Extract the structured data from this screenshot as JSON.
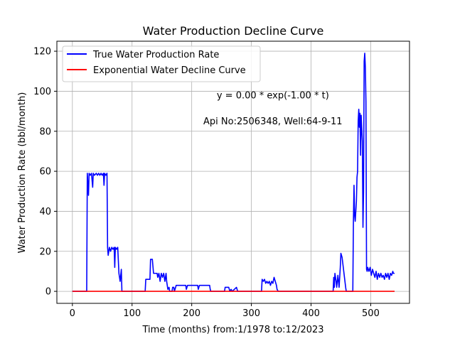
{
  "chart_data": {
    "type": "line",
    "title": "Water Production Decline Curve",
    "xlabel": "Time (months) from:1/1978 to:12/2023",
    "ylabel": "Water Production Rate (bbl/month)",
    "xlim": [
      -26,
      565
    ],
    "ylim": [
      -6,
      125
    ],
    "xticks": [
      0,
      100,
      200,
      300,
      400,
      500
    ],
    "yticks": [
      0,
      20,
      40,
      60,
      80,
      100,
      120
    ],
    "grid": true,
    "legend_position": "top-left",
    "annotations": [
      {
        "text": "y = 0.00 * exp(-1.00 * t)",
        "x": 336,
        "y": 98
      },
      {
        "text": "Api No:2506348, Well:64-9-11",
        "x": 336,
        "y": 85
      }
    ],
    "series": [
      {
        "name": "True Water Production Rate",
        "color": "#0000ff",
        "points": [
          [
            0,
            0
          ],
          [
            24,
            0
          ],
          [
            25,
            59
          ],
          [
            27,
            48
          ],
          [
            28,
            59
          ],
          [
            30,
            58
          ],
          [
            32,
            59
          ],
          [
            34,
            52
          ],
          [
            35,
            59
          ],
          [
            37,
            58
          ],
          [
            40,
            59
          ],
          [
            42,
            58
          ],
          [
            44,
            59
          ],
          [
            46,
            58
          ],
          [
            48,
            59
          ],
          [
            50,
            58
          ],
          [
            52,
            59
          ],
          [
            53,
            53
          ],
          [
            54,
            59
          ],
          [
            56,
            58
          ],
          [
            58,
            59
          ],
          [
            59,
            22
          ],
          [
            60,
            18
          ],
          [
            62,
            22
          ],
          [
            64,
            20
          ],
          [
            66,
            22
          ],
          [
            68,
            21
          ],
          [
            70,
            22
          ],
          [
            71,
            12
          ],
          [
            72,
            22
          ],
          [
            74,
            21
          ],
          [
            76,
            22
          ],
          [
            78,
            9
          ],
          [
            80,
            5
          ],
          [
            82,
            11
          ],
          [
            83,
            0
          ],
          [
            88,
            0
          ],
          [
            122,
            0
          ],
          [
            123,
            6
          ],
          [
            130,
            6
          ],
          [
            131,
            16
          ],
          [
            134,
            16
          ],
          [
            136,
            9
          ],
          [
            142,
            9
          ],
          [
            143,
            7
          ],
          [
            145,
            9
          ],
          [
            147,
            5
          ],
          [
            149,
            9
          ],
          [
            151,
            7
          ],
          [
            153,
            9
          ],
          [
            155,
            5
          ],
          [
            157,
            9
          ],
          [
            158,
            5
          ],
          [
            160,
            1
          ],
          [
            162,
            2
          ],
          [
            163,
            0
          ],
          [
            167,
            0
          ],
          [
            168,
            2
          ],
          [
            170,
            2
          ],
          [
            171,
            0
          ],
          [
            174,
            3
          ],
          [
            190,
            3
          ],
          [
            191,
            1
          ],
          [
            193,
            3
          ],
          [
            210,
            3
          ],
          [
            211,
            1
          ],
          [
            213,
            3
          ],
          [
            230,
            3
          ],
          [
            231,
            1
          ],
          [
            232,
            0
          ],
          [
            255,
            0
          ],
          [
            256,
            2
          ],
          [
            262,
            2
          ],
          [
            264,
            0
          ],
          [
            266,
            1
          ],
          [
            268,
            0
          ],
          [
            275,
            2
          ],
          [
            277,
            0
          ],
          [
            317,
            0
          ],
          [
            318,
            6
          ],
          [
            320,
            5
          ],
          [
            322,
            6
          ],
          [
            324,
            4
          ],
          [
            326,
            5
          ],
          [
            328,
            4
          ],
          [
            330,
            5
          ],
          [
            332,
            3
          ],
          [
            334,
            5
          ],
          [
            336,
            4
          ],
          [
            338,
            7
          ],
          [
            340,
            5
          ],
          [
            342,
            3
          ],
          [
            343,
            1
          ],
          [
            345,
            0
          ],
          [
            437,
            0
          ],
          [
            438,
            7
          ],
          [
            439,
            2
          ],
          [
            440,
            9
          ],
          [
            442,
            5
          ],
          [
            443,
            2
          ],
          [
            445,
            8
          ],
          [
            447,
            2
          ],
          [
            449,
            12
          ],
          [
            450,
            19
          ],
          [
            452,
            17
          ],
          [
            454,
            12
          ],
          [
            456,
            7
          ],
          [
            458,
            2
          ],
          [
            459,
            0
          ],
          [
            470,
            0
          ],
          [
            471,
            35
          ],
          [
            472,
            53
          ],
          [
            473,
            38
          ],
          [
            474,
            35
          ],
          [
            476,
            45
          ],
          [
            477,
            57
          ],
          [
            478,
            60
          ],
          [
            479,
            85
          ],
          [
            480,
            91
          ],
          [
            481,
            82
          ],
          [
            482,
            89
          ],
          [
            483,
            68
          ],
          [
            484,
            88
          ],
          [
            486,
            75
          ],
          [
            487,
            32
          ],
          [
            488,
            50
          ],
          [
            489,
            115
          ],
          [
            490,
            119
          ],
          [
            491,
            112
          ],
          [
            492,
            95
          ],
          [
            493,
            11
          ],
          [
            494,
            10
          ],
          [
            495,
            12
          ],
          [
            497,
            10
          ],
          [
            499,
            12
          ],
          [
            501,
            8
          ],
          [
            503,
            11
          ],
          [
            505,
            9
          ],
          [
            507,
            7
          ],
          [
            509,
            10
          ],
          [
            511,
            6
          ],
          [
            513,
            9
          ],
          [
            515,
            7
          ],
          [
            517,
            9
          ],
          [
            519,
            7
          ],
          [
            521,
            8
          ],
          [
            523,
            6
          ],
          [
            525,
            9
          ],
          [
            527,
            7
          ],
          [
            529,
            9
          ],
          [
            531,
            6
          ],
          [
            533,
            9
          ],
          [
            535,
            8
          ],
          [
            537,
            10
          ],
          [
            538,
            9
          ],
          [
            540,
            9
          ]
        ]
      },
      {
        "name": "Exponential Water Decline Curve",
        "color": "#ff0000",
        "points": [
          [
            0,
            0
          ],
          [
            540,
            0
          ]
        ]
      }
    ]
  }
}
